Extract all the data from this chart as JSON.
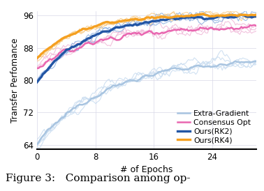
{
  "xlabel": "# of Epochs",
  "ylabel": "Transfer Perfomance",
  "caption": "Figure 3:   Comparison among op-",
  "xlim": [
    0,
    30
  ],
  "ylim": [
    63,
    97
  ],
  "yticks": [
    64,
    72,
    80,
    88,
    96
  ],
  "xticks": [
    0,
    8,
    16,
    24
  ],
  "extra_gradient_color": "#a8c4e0",
  "consensus_opt_color": "#e966b0",
  "rk2_color": "#2255a4",
  "rk4_color": "#f5a020",
  "extra_gradient_band_color": "#c8dcf0",
  "consensus_opt_band_color": "#f0b8d8",
  "rk2_band_color": "#8aafe0",
  "rk4_band_color": "#f8cc88",
  "legend_labels": [
    "Extra-Gradient",
    "Consensus Opt",
    "Ours(RK2)",
    "Ours(RK4)"
  ]
}
